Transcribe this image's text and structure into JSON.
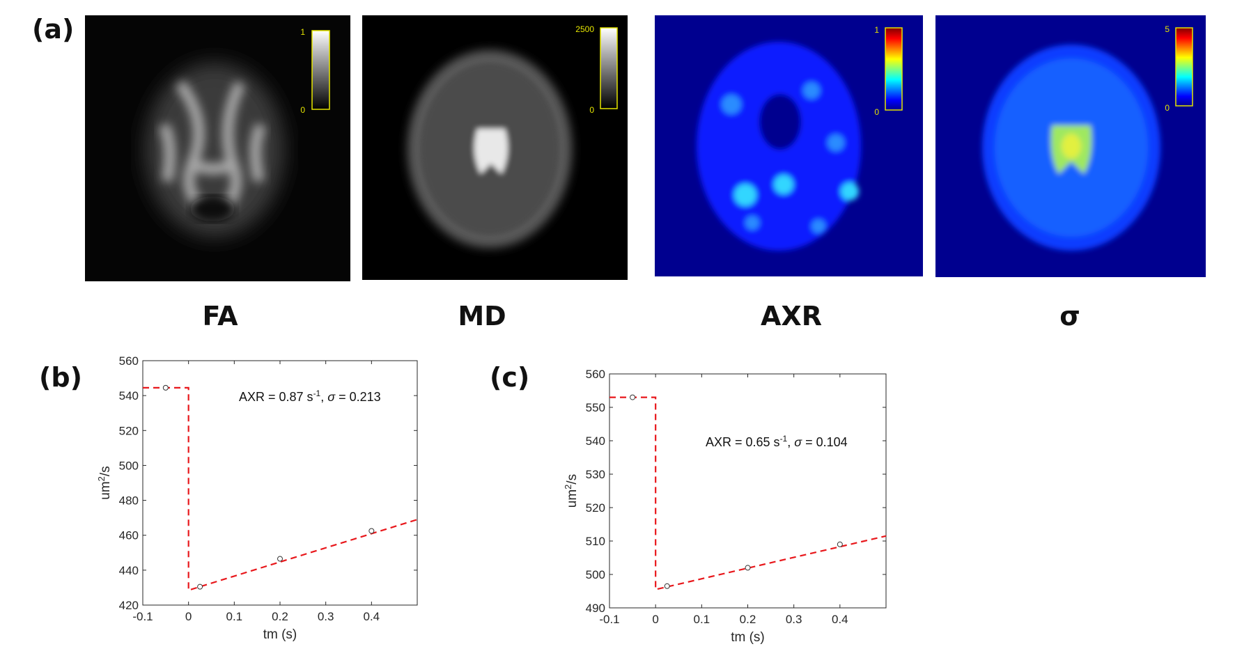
{
  "panel_labels": {
    "a": "(a)",
    "b": "(b)",
    "c": "(c)"
  },
  "maps": [
    {
      "title": "FA",
      "colorbar": {
        "max": "1",
        "min": "0",
        "colormap": "gray"
      }
    },
    {
      "title": "MD",
      "colorbar": {
        "max": "2500",
        "min": "0",
        "colormap": "gray"
      }
    },
    {
      "title": "AXR",
      "colorbar": {
        "max": "1",
        "min": "0",
        "colormap": "jet"
      }
    },
    {
      "title": "σ",
      "colorbar": {
        "max": "5",
        "min": "0",
        "colormap": "jet"
      }
    }
  ],
  "chart_data": [
    {
      "type": "line",
      "panel": "(b)",
      "xlabel": "tm (s)",
      "ylabel_base": "um",
      "ylabel_sup": "2",
      "ylabel_tail": "/s",
      "xlim": [
        -0.1,
        0.5
      ],
      "ylim": [
        420,
        560
      ],
      "xticks": [
        -0.1,
        0,
        0.1,
        0.2,
        0.3,
        0.4
      ],
      "xtick_labels": [
        "-0.1",
        "0",
        "0.1",
        "0.2",
        "0.3",
        "0.4"
      ],
      "yticks": [
        420,
        440,
        460,
        480,
        500,
        520,
        540,
        560
      ],
      "ytick_labels": [
        "420",
        "440",
        "460",
        "480",
        "500",
        "520",
        "540",
        "560"
      ],
      "points": [
        {
          "x": -0.05,
          "y": 544.5
        },
        {
          "x": 0.025,
          "y": 430.5
        },
        {
          "x": 0.2,
          "y": 446.5
        },
        {
          "x": 0.4,
          "y": 462.5
        }
      ],
      "fit_line": [
        {
          "x": -0.1,
          "y": 544.5
        },
        {
          "x": 0.0,
          "y": 544.5
        },
        {
          "x": 0.0,
          "y": 428.5
        },
        {
          "x": 0.5,
          "y": 469
        }
      ],
      "annotation": {
        "pre": "AXR = 0.87 s",
        "sup": "-1",
        "mid": ", ",
        "sigma": "σ",
        "post": " = 0.213"
      },
      "colors": {
        "fit": "#e8171b",
        "marker": "#333333",
        "axis": "#262626"
      }
    },
    {
      "type": "line",
      "panel": "(c)",
      "xlabel": "tm (s)",
      "ylabel_base": "um",
      "ylabel_sup": "2",
      "ylabel_tail": "/s",
      "xlim": [
        -0.1,
        0.5
      ],
      "ylim": [
        490,
        560
      ],
      "xticks": [
        -0.1,
        0,
        0.1,
        0.2,
        0.3,
        0.4
      ],
      "xtick_labels": [
        "-0.1",
        "0",
        "0.1",
        "0.2",
        "0.3",
        "0.4"
      ],
      "yticks": [
        490,
        500,
        510,
        520,
        530,
        540,
        550,
        560
      ],
      "ytick_labels": [
        "490",
        "500",
        "510",
        "520",
        "530",
        "540",
        "550",
        "560"
      ],
      "points": [
        {
          "x": -0.05,
          "y": 553
        },
        {
          "x": 0.025,
          "y": 496.5
        },
        {
          "x": 0.2,
          "y": 502
        },
        {
          "x": 0.4,
          "y": 509
        }
      ],
      "fit_line": [
        {
          "x": -0.1,
          "y": 553
        },
        {
          "x": 0.0,
          "y": 553
        },
        {
          "x": 0.0,
          "y": 495.5
        },
        {
          "x": 0.5,
          "y": 511.5
        }
      ],
      "annotation": {
        "pre": "AXR = 0.65 s",
        "sup": "-1",
        "mid": ", ",
        "sigma": "σ",
        "post": " = 0.104"
      },
      "colors": {
        "fit": "#e8171b",
        "marker": "#333333",
        "axis": "#262626"
      }
    }
  ]
}
